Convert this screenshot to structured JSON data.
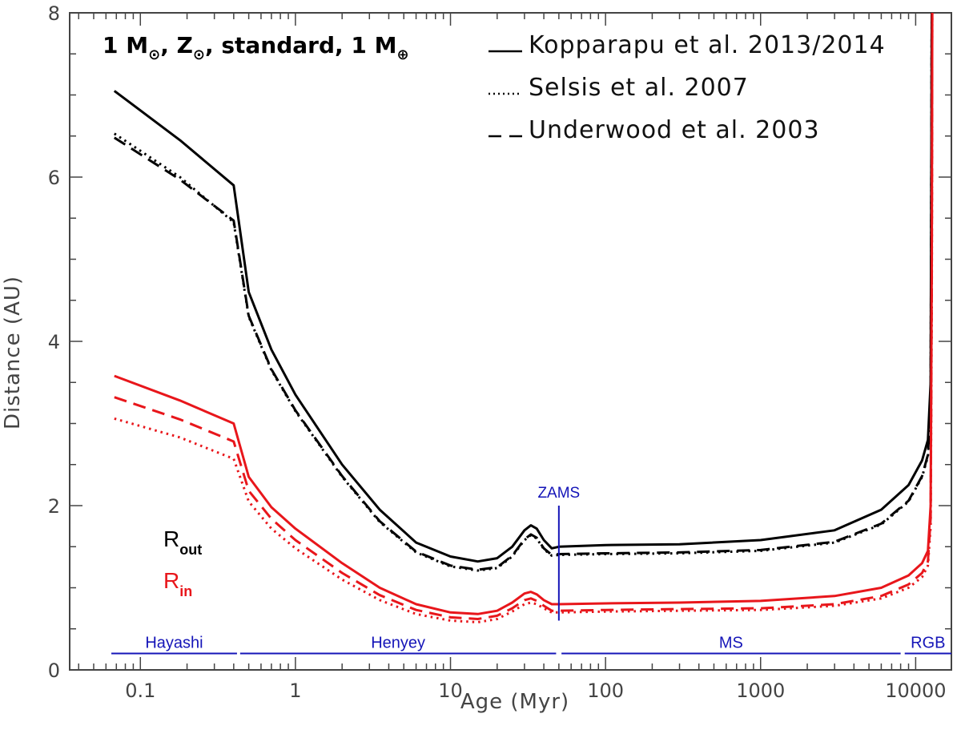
{
  "chart_data": {
    "type": "line",
    "title_parts": {
      "mass": "1 M",
      "metal": ", Z",
      "rest": ", standard, 1 M",
      "sun_symbol": "⊙",
      "earth_symbol": "⊕"
    },
    "xlabel": "Age (Myr)",
    "ylabel": "Distance (AU)",
    "x_scale": "log",
    "xlim": [
      0.035,
      17000
    ],
    "ylim": [
      0,
      8
    ],
    "x_ticks": [
      {
        "value": 0.1,
        "label": "0.1"
      },
      {
        "value": 1,
        "label": "1"
      },
      {
        "value": 10,
        "label": "10"
      },
      {
        "value": 100,
        "label": "100"
      },
      {
        "value": 1000,
        "label": "1000"
      },
      {
        "value": 10000,
        "label": "10000"
      }
    ],
    "y_ticks": [
      {
        "value": 0,
        "label": "0"
      },
      {
        "value": 2,
        "label": "2"
      },
      {
        "value": 4,
        "label": "4"
      },
      {
        "value": 6,
        "label": "6"
      },
      {
        "value": 8,
        "label": "8"
      }
    ],
    "legend": [
      {
        "name": "Kopparapu et al. 2013/2014",
        "style": "solid"
      },
      {
        "name": "Selsis et al. 2007",
        "style": "dotted"
      },
      {
        "name": "Underwood et al. 2003",
        "style": "dashed"
      }
    ],
    "series_labels": {
      "out": {
        "main": "R",
        "sub": "out",
        "color": "#000000"
      },
      "in": {
        "main": "R",
        "sub": "in",
        "color": "#e8161b"
      }
    },
    "zams": {
      "label": "ZAMS",
      "age": 50,
      "y_top": 2.0,
      "y_bottom": 0.6
    },
    "phases": [
      {
        "label": "Hayashi",
        "start": 0.065,
        "end": 0.42
      },
      {
        "label": "Henyey",
        "start": 0.44,
        "end": 48
      },
      {
        "label": "MS",
        "start": 52,
        "end": 8000
      },
      {
        "label": "RGB",
        "start": 8500,
        "end": 17000
      }
    ],
    "phase_line_y": 0.2,
    "colors": {
      "outer": "#000000",
      "inner": "#e8161b",
      "annotation": "#1515b8",
      "axis": "#444444"
    },
    "series": [
      {
        "name": "Kopparapu et al. 2013/2014",
        "group": "out",
        "style": "solid",
        "x": [
          0.068,
          0.18,
          0.4,
          0.5,
          0.7,
          1,
          2,
          3.5,
          6,
          10,
          15,
          20,
          25,
          30,
          33,
          36,
          40,
          45,
          50,
          100,
          300,
          1000,
          3000,
          6000,
          9000,
          11000,
          12000,
          12500,
          12700
        ],
        "y": [
          7.05,
          6.45,
          5.9,
          4.6,
          3.9,
          3.35,
          2.5,
          1.95,
          1.55,
          1.38,
          1.32,
          1.36,
          1.5,
          1.7,
          1.76,
          1.72,
          1.58,
          1.48,
          1.5,
          1.52,
          1.53,
          1.58,
          1.7,
          1.95,
          2.25,
          2.55,
          2.8,
          3.5,
          8.0
        ]
      },
      {
        "name": "Selsis et al. 2007",
        "group": "out",
        "style": "dotted",
        "x": [
          0.068,
          0.18,
          0.4,
          0.5,
          0.7,
          1,
          2,
          3.5,
          6,
          10,
          15,
          20,
          25,
          30,
          33,
          36,
          40,
          45,
          50,
          100,
          300,
          1000,
          3000,
          6000,
          9000,
          11000,
          12000,
          12500,
          12700
        ],
        "y": [
          6.53,
          6.0,
          5.45,
          4.3,
          3.65,
          3.15,
          2.35,
          1.8,
          1.43,
          1.26,
          1.21,
          1.24,
          1.38,
          1.58,
          1.64,
          1.6,
          1.47,
          1.39,
          1.4,
          1.41,
          1.42,
          1.45,
          1.55,
          1.77,
          2.05,
          2.35,
          2.6,
          3.2,
          8.0
        ]
      },
      {
        "name": "Underwood et al. 2003",
        "group": "out",
        "style": "dashed",
        "x": [
          0.068,
          0.18,
          0.4,
          0.5,
          0.7,
          1,
          2,
          3.5,
          6,
          10,
          15,
          20,
          25,
          30,
          33,
          36,
          40,
          45,
          50,
          100,
          300,
          1000,
          3000,
          6000,
          9000,
          11000,
          12000,
          12500,
          12700
        ],
        "y": [
          6.48,
          5.97,
          5.47,
          4.31,
          3.66,
          3.16,
          2.36,
          1.81,
          1.44,
          1.27,
          1.22,
          1.25,
          1.39,
          1.59,
          1.65,
          1.61,
          1.48,
          1.4,
          1.41,
          1.42,
          1.43,
          1.46,
          1.56,
          1.78,
          2.06,
          2.36,
          2.62,
          3.25,
          8.0
        ]
      },
      {
        "name": "Kopparapu et al. 2013/2014",
        "group": "in",
        "style": "solid",
        "x": [
          0.068,
          0.18,
          0.4,
          0.5,
          0.7,
          1,
          2,
          3.5,
          6,
          10,
          15,
          20,
          25,
          30,
          33,
          36,
          40,
          45,
          50,
          100,
          300,
          1000,
          3000,
          6000,
          9000,
          11000,
          12000,
          12500,
          12700,
          12800
        ],
        "y": [
          3.58,
          3.28,
          3.0,
          2.35,
          1.98,
          1.72,
          1.3,
          1.0,
          0.8,
          0.7,
          0.68,
          0.72,
          0.82,
          0.93,
          0.95,
          0.92,
          0.85,
          0.8,
          0.8,
          0.81,
          0.82,
          0.84,
          0.9,
          1.0,
          1.15,
          1.3,
          1.45,
          2.0,
          5.0,
          8.0
        ]
      },
      {
        "name": "Selsis et al. 2007",
        "group": "in",
        "style": "dotted",
        "x": [
          0.068,
          0.18,
          0.4,
          0.5,
          0.7,
          1,
          2,
          3.5,
          6,
          10,
          15,
          20,
          25,
          30,
          33,
          36,
          40,
          45,
          50,
          100,
          300,
          1000,
          3000,
          6000,
          9000,
          11000,
          12000,
          12500,
          12700,
          12800
        ],
        "y": [
          3.06,
          2.83,
          2.57,
          2.05,
          1.72,
          1.48,
          1.1,
          0.85,
          0.68,
          0.6,
          0.58,
          0.62,
          0.71,
          0.8,
          0.82,
          0.8,
          0.75,
          0.7,
          0.7,
          0.71,
          0.72,
          0.73,
          0.78,
          0.87,
          1.0,
          1.13,
          1.27,
          1.75,
          4.5,
          8.0
        ]
      },
      {
        "name": "Underwood et al. 2003",
        "group": "in",
        "style": "dashed",
        "x": [
          0.068,
          0.18,
          0.4,
          0.5,
          0.7,
          1,
          2,
          3.5,
          6,
          10,
          15,
          20,
          25,
          30,
          33,
          36,
          40,
          45,
          50,
          100,
          300,
          1000,
          3000,
          6000,
          9000,
          11000,
          12000,
          12500,
          12700,
          12800
        ],
        "y": [
          3.32,
          3.05,
          2.78,
          2.18,
          1.84,
          1.58,
          1.18,
          0.91,
          0.73,
          0.64,
          0.62,
          0.66,
          0.75,
          0.85,
          0.87,
          0.84,
          0.78,
          0.72,
          0.72,
          0.73,
          0.74,
          0.75,
          0.8,
          0.9,
          1.04,
          1.18,
          1.32,
          1.85,
          4.7,
          8.0
        ]
      }
    ]
  }
}
